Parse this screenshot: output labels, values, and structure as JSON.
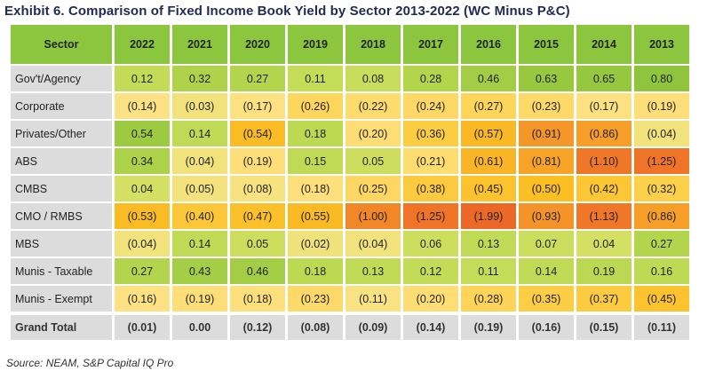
{
  "title": "Exhibit 6. Comparison of Fixed Income Book Yield by Sector 2013-2022 (WC Minus P&C)",
  "source": "Source: NEAM, S&P Capital IQ Pro",
  "header_color": "#8cc63f",
  "chart_data": {
    "type": "heatmap",
    "corner_label": "Sector",
    "columns": [
      "2022",
      "2021",
      "2020",
      "2019",
      "2018",
      "2017",
      "2016",
      "2015",
      "2014",
      "2013"
    ],
    "rows": [
      {
        "sector": "Gov't/Agency",
        "values": [
          0.12,
          0.32,
          0.27,
          0.11,
          0.08,
          0.28,
          0.46,
          0.63,
          0.65,
          0.8
        ],
        "labels": [
          "0.12",
          "0.32",
          "0.27",
          "0.11",
          "0.08",
          "0.28",
          "0.46",
          "0.63",
          "0.65",
          "0.80"
        ]
      },
      {
        "sector": "Corporate",
        "values": [
          -0.14,
          -0.03,
          -0.17,
          -0.26,
          -0.22,
          -0.24,
          -0.27,
          -0.23,
          -0.17,
          -0.19
        ],
        "labels": [
          "(0.14)",
          "(0.03)",
          "(0.17)",
          "(0.26)",
          "(0.22)",
          "(0.24)",
          "(0.27)",
          "(0.23)",
          "(0.17)",
          "(0.19)"
        ]
      },
      {
        "sector": "Privates/Other",
        "values": [
          0.54,
          0.14,
          -0.54,
          0.18,
          -0.2,
          -0.36,
          -0.57,
          -0.91,
          -0.86,
          -0.04
        ],
        "labels": [
          "0.54",
          "0.14",
          "(0.54)",
          "0.18",
          "(0.20)",
          "(0.36)",
          "(0.57)",
          "(0.91)",
          "(0.86)",
          "(0.04)"
        ]
      },
      {
        "sector": "ABS",
        "values": [
          0.34,
          -0.04,
          -0.19,
          0.15,
          0.05,
          -0.21,
          -0.61,
          -0.81,
          -1.1,
          -1.25
        ],
        "labels": [
          "0.34",
          "(0.04)",
          "(0.19)",
          "0.15",
          "0.05",
          "(0.21)",
          "(0.61)",
          "(0.81)",
          "(1.10)",
          "(1.25)"
        ]
      },
      {
        "sector": "CMBS",
        "values": [
          0.04,
          -0.05,
          -0.08,
          -0.18,
          -0.25,
          -0.38,
          -0.45,
          -0.5,
          -0.42,
          -0.32
        ],
        "labels": [
          "0.04",
          "(0.05)",
          "(0.08)",
          "(0.18)",
          "(0.25)",
          "(0.38)",
          "(0.45)",
          "(0.50)",
          "(0.42)",
          "(0.32)"
        ]
      },
      {
        "sector": "CMO / RMBS",
        "values": [
          -0.53,
          -0.4,
          -0.47,
          -0.55,
          -1.0,
          -1.25,
          -1.99,
          -0.93,
          -1.13,
          -0.86
        ],
        "labels": [
          "(0.53)",
          "(0.40)",
          "(0.47)",
          "(0.55)",
          "(1.00)",
          "(1.25)",
          "(1.99)",
          "(0.93)",
          "(1.13)",
          "(0.86)"
        ]
      },
      {
        "sector": "MBS",
        "values": [
          -0.04,
          0.14,
          0.05,
          -0.02,
          -0.04,
          0.06,
          0.13,
          0.07,
          0.04,
          0.27
        ],
        "labels": [
          "(0.04)",
          "0.14",
          "0.05",
          "(0.02)",
          "(0.04)",
          "0.06",
          "0.13",
          "0.07",
          "0.04",
          "0.27"
        ]
      },
      {
        "sector": "Munis - Taxable",
        "values": [
          0.27,
          0.43,
          0.46,
          0.18,
          0.13,
          0.12,
          0.11,
          0.14,
          0.19,
          0.16
        ],
        "labels": [
          "0.27",
          "0.43",
          "0.46",
          "0.18",
          "0.13",
          "0.12",
          "0.11",
          "0.14",
          "0.19",
          "0.16"
        ]
      },
      {
        "sector": "Munis - Exempt",
        "values": [
          -0.16,
          -0.19,
          -0.18,
          -0.23,
          -0.11,
          -0.2,
          -0.28,
          -0.35,
          -0.37,
          -0.45
        ],
        "labels": [
          "(0.16)",
          "(0.19)",
          "(0.18)",
          "(0.23)",
          "(0.11)",
          "(0.20)",
          "(0.28)",
          "(0.35)",
          "(0.37)",
          "(0.45)"
        ]
      }
    ],
    "total": {
      "sector": "Grand Total",
      "values": [
        -0.01,
        0.0,
        -0.12,
        -0.08,
        -0.09,
        -0.14,
        -0.19,
        -0.16,
        -0.15,
        -0.11
      ],
      "labels": [
        "(0.01)",
        "0.00",
        "(0.12)",
        "(0.08)",
        "(0.09)",
        "(0.14)",
        "(0.19)",
        "(0.16)",
        "(0.15)",
        "(0.11)"
      ]
    }
  }
}
